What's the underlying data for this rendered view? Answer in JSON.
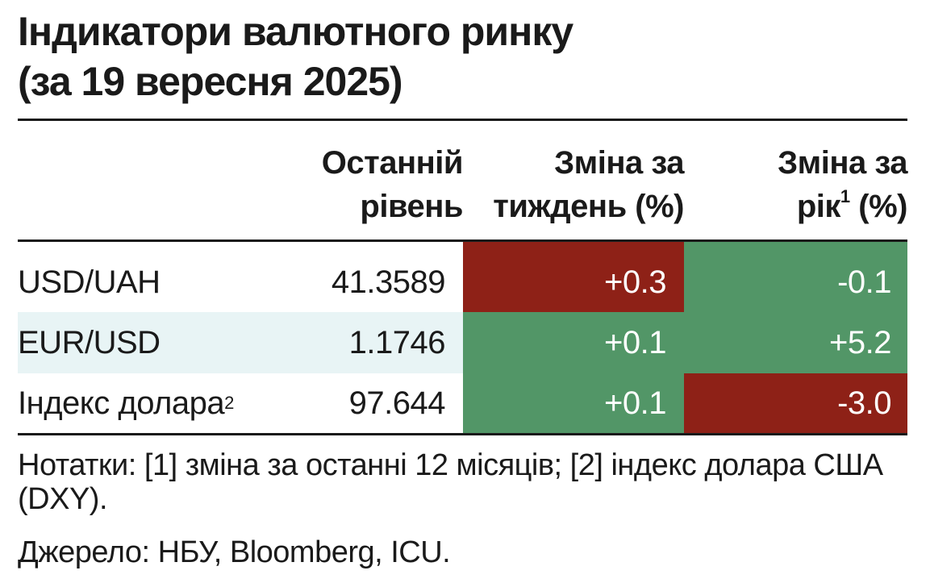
{
  "title": {
    "line1": "Індикатори валютного ринку",
    "line2": "(за 19 вересня 2025)"
  },
  "columns": {
    "last_level": {
      "line1": "Останній",
      "line2": "рівень"
    },
    "week_change": {
      "line1": "Зміна за",
      "line2": "тиждень (%)"
    },
    "year_change": {
      "line1": "Зміна за",
      "line2_a": "рік",
      "sup": "1",
      "line2_b": " (%)"
    }
  },
  "rows": [
    {
      "name": "USD/UAH",
      "sup": "",
      "last": "41.3589",
      "week": "+0.3",
      "year": "-0.1",
      "week_sign": "negative",
      "year_sign": "positive"
    },
    {
      "name": "EUR/USD",
      "sup": "",
      "last": "1.1746",
      "week": "+0.1",
      "year": "+5.2",
      "week_sign": "positive",
      "year_sign": "positive"
    },
    {
      "name": "Індекс долара",
      "sup": "2",
      "last": "97.644",
      "week": "+0.1",
      "year": "-3.0",
      "week_sign": "positive",
      "year_sign": "negative"
    }
  ],
  "notes": "Нотатки: [1] зміна за останні 12 місяців; [2] індекс долара США (DXY).",
  "source": "Джерело: НБУ, Bloomberg, ICU.",
  "colors": {
    "positive": "#529667",
    "negative": "#8e2117",
    "row_shade": "#e8f4f5",
    "text": "#1a1a1a"
  }
}
